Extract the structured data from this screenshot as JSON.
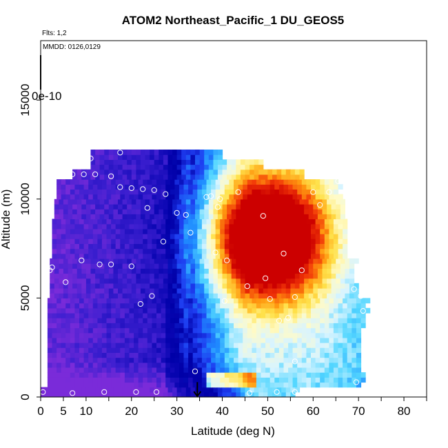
{
  "chart_data": {
    "type": "heatmap",
    "title": "ATOM2 Northeast_Pacific_1 DU_GEOS5",
    "flights_label": "Flts: 1,2",
    "dates_label": "MMDD: 0126,0129",
    "scale_label": "0e-10",
    "xlabel": "Latitude (deg N)",
    "ylabel": "Altitude (m)",
    "xlim": [
      0,
      85
    ],
    "ylim": [
      0,
      18000
    ],
    "x_ticks": [
      "0",
      "5",
      "10",
      "20",
      "30",
      "40",
      "50",
      "60",
      "70",
      "80"
    ],
    "x_tick_values": [
      0,
      5,
      10,
      20,
      30,
      40,
      50,
      60,
      70,
      80
    ],
    "y_ticks": [
      "0",
      "5000",
      "10000",
      "15000"
    ],
    "y_tick_values": [
      0,
      5000,
      10000,
      15000
    ],
    "colormap": [
      "#7a2bd9",
      "#3d1fd0",
      "#0a06b3",
      "#0000a8",
      "#1e3cf0",
      "#1f8cff",
      "#52d6ff",
      "#d8f4ff",
      "#fffbc8",
      "#ffe14a",
      "#ff9a10",
      "#f23808",
      "#cc0000"
    ],
    "latitude_range_by_altitude": [
      {
        "alt": [
          0,
          500
        ],
        "lat": [
          0,
          56.5
        ]
      },
      {
        "alt": [
          500,
          3500
        ],
        "lat": [
          1.5,
          70.5
        ]
      },
      {
        "alt": [
          3500,
          5000
        ],
        "lat": [
          1.5,
          71.5
        ]
      },
      {
        "alt": [
          5000,
          7000
        ],
        "lat": [
          2,
          69
        ]
      },
      {
        "alt": [
          7000,
          9000
        ],
        "lat": [
          2.5,
          67
        ]
      },
      {
        "alt": [
          9000,
          10000
        ],
        "lat": [
          3,
          66.5
        ]
      },
      {
        "alt": [
          10000,
          11000
        ],
        "lat": [
          3.5,
          65.5
        ]
      },
      {
        "alt": [
          11000,
          11500
        ],
        "lat": [
          7,
          57
        ]
      },
      {
        "alt": [
          11500,
          12000
        ],
        "lat": [
          11,
          48
        ]
      },
      {
        "alt": [
          12000,
          12500
        ],
        "lat": [
          11,
          39.5
        ]
      }
    ],
    "enhanced_core": {
      "lat_range": [
        38,
        56
      ],
      "alt_range": [
        5500,
        10500
      ],
      "peak_lat": 50,
      "peak_alt": 8000
    },
    "sample_points": [
      [
        0.5,
        250
      ],
      [
        7,
        200
      ],
      [
        14,
        250
      ],
      [
        21,
        250
      ],
      [
        25.5,
        250
      ],
      [
        46,
        200
      ],
      [
        52,
        250
      ],
      [
        56,
        250
      ],
      [
        34,
        1300
      ],
      [
        56,
        1800
      ],
      [
        69.5,
        750
      ],
      [
        52.5,
        3850
      ],
      [
        54.5,
        4000
      ],
      [
        71,
        4350
      ],
      [
        22,
        4700
      ],
      [
        24.5,
        5100
      ],
      [
        40.5,
        4850
      ],
      [
        50.5,
        4950
      ],
      [
        56,
        5050
      ],
      [
        69,
        5450
      ],
      [
        70.5,
        5100
      ],
      [
        5.5,
        5800
      ],
      [
        2,
        6400
      ],
      [
        2.5,
        6550
      ],
      [
        9,
        6900
      ],
      [
        13,
        6700
      ],
      [
        15.5,
        6700
      ],
      [
        20,
        6600
      ],
      [
        45.5,
        5600
      ],
      [
        49.5,
        6000
      ],
      [
        57.5,
        6400
      ],
      [
        27,
        7850
      ],
      [
        38.5,
        7300
      ],
      [
        41,
        6900
      ],
      [
        53.5,
        7250
      ],
      [
        33,
        8300
      ],
      [
        23.5,
        9550
      ],
      [
        30,
        9300
      ],
      [
        32,
        9200
      ],
      [
        39,
        9600
      ],
      [
        49,
        9150
      ],
      [
        17.5,
        10600
      ],
      [
        20,
        10550
      ],
      [
        22.5,
        10500
      ],
      [
        25,
        10450
      ],
      [
        27.5,
        10250
      ],
      [
        36.5,
        10100
      ],
      [
        37.5,
        10150
      ],
      [
        39.5,
        10000
      ],
      [
        43.5,
        10350
      ],
      [
        60,
        10350
      ],
      [
        61.5,
        9700
      ],
      [
        63.5,
        10350
      ],
      [
        3.5,
        11250
      ],
      [
        4.5,
        11250
      ],
      [
        7,
        11250
      ],
      [
        9.5,
        11250
      ],
      [
        12,
        11250
      ],
      [
        15.5,
        11150
      ],
      [
        65.5,
        10900
      ],
      [
        11,
        12050
      ],
      [
        17.5,
        12350
      ]
    ],
    "arrow": {
      "lat": 34.5,
      "alt_from": 750,
      "alt_to": 0
    },
    "grid": false
  }
}
